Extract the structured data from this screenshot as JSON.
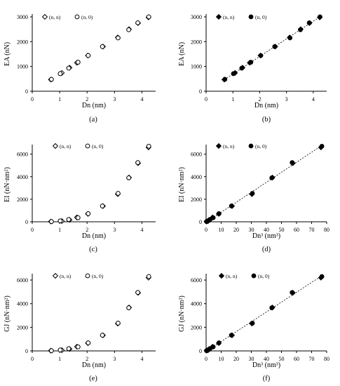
{
  "chart_data": [
    {
      "panel_label": "(a)",
      "type": "scatter",
      "xlabel": "Dn (nm)",
      "ylabel": "EA (nN)",
      "xlim": [
        0,
        4.5
      ],
      "ylim": [
        0,
        3000
      ],
      "x_ticks": [
        "0",
        "1",
        "2",
        "3",
        "4"
      ],
      "y_ticks": [
        "0",
        "1000",
        "2000",
        "3000"
      ],
      "legend": [
        "(n, n)",
        "(n, 0)"
      ],
      "fit_line": false,
      "series": [
        {
          "name": "(n, n)",
          "marker": "diamond-open",
          "x": [
            0.68,
            1.08,
            1.36,
            1.63,
            2.03,
            2.58,
            3.12,
            3.53,
            3.86,
            4.24
          ],
          "y": [
            470,
            740,
            950,
            1150,
            1440,
            1800,
            2170,
            2500,
            2750,
            2980
          ]
        },
        {
          "name": "(n, 0)",
          "marker": "circle-open",
          "x": [
            0.7,
            1.02,
            1.33,
            1.67,
            2.04,
            2.56,
            3.13,
            3.52,
            3.85,
            4.25
          ],
          "y": [
            480,
            710,
            930,
            1170,
            1440,
            1800,
            2150,
            2480,
            2760,
            3000
          ]
        }
      ]
    },
    {
      "panel_label": "(b)",
      "type": "scatter",
      "xlabel": "Dn (nm)",
      "ylabel": "EA (nN)",
      "xlim": [
        0,
        4.5
      ],
      "ylim": [
        0,
        3000
      ],
      "x_ticks": [
        "0",
        "1",
        "2",
        "3",
        "4"
      ],
      "y_ticks": [
        "0",
        "1000",
        "2000",
        "3000"
      ],
      "legend": [
        "(n, n)",
        "(n, 0)"
      ],
      "fit_line": true,
      "series": [
        {
          "name": "(n, n)",
          "marker": "diamond-filled",
          "x": [
            0.68,
            1.08,
            1.36,
            1.63,
            2.03,
            2.58,
            3.12,
            3.53,
            3.86,
            4.24
          ],
          "y": [
            470,
            740,
            950,
            1150,
            1440,
            1800,
            2170,
            2500,
            2750,
            2980
          ]
        },
        {
          "name": "(n, 0)",
          "marker": "circle-filled",
          "x": [
            0.7,
            1.02,
            1.33,
            1.67,
            2.04,
            2.56,
            3.13,
            3.52,
            3.85,
            4.25
          ],
          "y": [
            480,
            710,
            930,
            1170,
            1440,
            1800,
            2150,
            2480,
            2760,
            3000
          ]
        }
      ]
    },
    {
      "panel_label": "(c)",
      "type": "scatter",
      "xlabel": "Dn (nm)",
      "ylabel": "EI (nN·nm²)",
      "xlim": [
        0,
        4.5
      ],
      "ylim": [
        0,
        6600
      ],
      "x_ticks": [
        "0",
        "1",
        "2",
        "3",
        "4"
      ],
      "y_ticks": [
        "0",
        "2000",
        "4000",
        "6000"
      ],
      "legend": [
        "(n, n)",
        "(n, 0)"
      ],
      "fit_line": false,
      "series": [
        {
          "name": "(n, n)",
          "marker": "diamond-open",
          "x": [
            0.68,
            1.08,
            1.36,
            1.63,
            2.03,
            2.58,
            3.12,
            3.53,
            3.86,
            4.24
          ],
          "y": [
            20,
            60,
            170,
            390,
            700,
            1390,
            2450,
            3920,
            5200,
            6600
          ]
        },
        {
          "name": "(n, 0)",
          "marker": "circle-open",
          "x": [
            0.7,
            1.02,
            1.33,
            1.67,
            2.04,
            2.56,
            3.13,
            3.52,
            3.85,
            4.25
          ],
          "y": [
            20,
            80,
            200,
            360,
            720,
            1400,
            2520,
            3900,
            5250,
            6700
          ]
        }
      ]
    },
    {
      "panel_label": "(d)",
      "type": "scatter",
      "xlabel": "Dn³ (nm³)",
      "ylabel": "EI (nN·nm²)",
      "xlim": [
        0,
        80
      ],
      "ylim": [
        0,
        6600
      ],
      "x_ticks": [
        "0",
        "10",
        "20",
        "30",
        "40",
        "50",
        "60",
        "70",
        "80"
      ],
      "y_ticks": [
        "0",
        "2000",
        "4000",
        "6000"
      ],
      "legend": [
        "(n, n)",
        "(n, 0)"
      ],
      "fit_line": true,
      "series": [
        {
          "name": "(n, n)",
          "marker": "diamond-filled",
          "x": [
            0.3,
            1.3,
            2.5,
            4.3,
            8.4,
            17.2,
            30.4,
            44.0,
            57.5,
            76.2
          ],
          "y": [
            20,
            60,
            170,
            390,
            700,
            1390,
            2450,
            3920,
            5200,
            6600
          ]
        },
        {
          "name": "(n, 0)",
          "marker": "circle-filled",
          "x": [
            0.3,
            1.1,
            2.4,
            4.7,
            8.5,
            16.8,
            30.7,
            43.6,
            57.1,
            76.8
          ],
          "y": [
            20,
            80,
            200,
            360,
            720,
            1400,
            2520,
            3900,
            5250,
            6700
          ]
        }
      ]
    },
    {
      "panel_label": "(e)",
      "type": "scatter",
      "xlabel": "Dn (nm)",
      "ylabel": "GJ (nN·nm²)",
      "xlim": [
        0,
        4.5
      ],
      "ylim": [
        0,
        6300
      ],
      "x_ticks": [
        "0",
        "1",
        "2",
        "3",
        "4"
      ],
      "y_ticks": [
        "0",
        "2000",
        "4000",
        "6000"
      ],
      "legend": [
        "(n, n)",
        "(n, 0)"
      ],
      "fit_line": false,
      "series": [
        {
          "name": "(n, n)",
          "marker": "diamond-open",
          "x": [
            0.68,
            1.08,
            1.36,
            1.63,
            2.03,
            2.58,
            3.12,
            3.53,
            3.86,
            4.24
          ],
          "y": [
            20,
            60,
            160,
            360,
            660,
            1320,
            2320,
            3680,
            4920,
            6200
          ]
        },
        {
          "name": "(n, 0)",
          "marker": "circle-open",
          "x": [
            0.7,
            1.02,
            1.33,
            1.67,
            2.04,
            2.56,
            3.13,
            3.52,
            3.85,
            4.25
          ],
          "y": [
            20,
            80,
            190,
            340,
            680,
            1330,
            2350,
            3650,
            4950,
            6300
          ]
        }
      ]
    },
    {
      "panel_label": "(f)",
      "type": "scatter",
      "xlabel": "Dn³ (nm³)",
      "ylabel": "GJ (nN·nm²)",
      "xlim": [
        0,
        80
      ],
      "ylim": [
        0,
        6300
      ],
      "x_ticks": [
        "0",
        "10",
        "20",
        "30",
        "40",
        "50",
        "60",
        "70",
        "80"
      ],
      "y_ticks": [
        "0",
        "2000",
        "4000",
        "6000"
      ],
      "legend": [
        "(n, n)",
        "(n, 0)"
      ],
      "fit_line": true,
      "series": [
        {
          "name": "(n, n)",
          "marker": "diamond-filled",
          "x": [
            0.3,
            1.3,
            2.5,
            4.3,
            8.4,
            17.2,
            30.4,
            44.0,
            57.5,
            76.2
          ],
          "y": [
            20,
            60,
            160,
            360,
            660,
            1320,
            2320,
            3680,
            4920,
            6200
          ]
        },
        {
          "name": "(n, 0)",
          "marker": "circle-filled",
          "x": [
            0.3,
            1.1,
            2.4,
            4.7,
            8.5,
            16.8,
            30.7,
            43.6,
            57.1,
            76.8
          ],
          "y": [
            20,
            80,
            190,
            340,
            680,
            1330,
            2350,
            3650,
            4950,
            6300
          ]
        }
      ]
    }
  ]
}
